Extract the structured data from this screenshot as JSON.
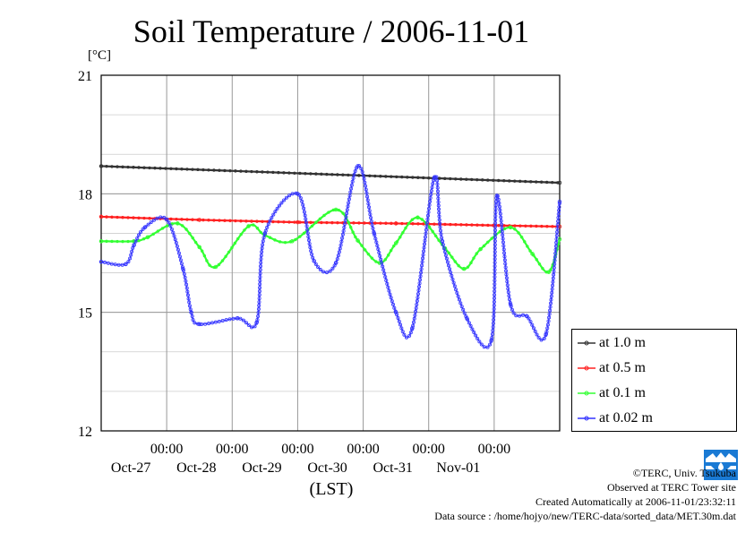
{
  "chart_data": {
    "type": "line",
    "title": "Soil Temperature / 2006-11-01",
    "ylabel": "[°C]",
    "xlabel": "(LST)",
    "ylim": [
      12,
      21
    ],
    "yticks": [
      12,
      15,
      18,
      21
    ],
    "xlim": [
      "2006-10-26 00:00",
      "2006-11-01 24:00"
    ],
    "xticks": [
      {
        "time": "00:00",
        "date": "Oct-27"
      },
      {
        "time": "00:00",
        "date": "Oct-28"
      },
      {
        "time": "00:00",
        "date": "Oct-29"
      },
      {
        "time": "00:00",
        "date": "Oct-30"
      },
      {
        "time": "00:00",
        "date": "Oct-31"
      },
      {
        "time": "00:00",
        "date": "Nov-01"
      }
    ],
    "grid": true,
    "legend_position": "right-bottom",
    "series": [
      {
        "name": "at 1.0 m",
        "color": "#333333",
        "x": [
          "2006-10-26 00:00",
          "2006-11-01 24:00"
        ],
        "y": [
          18.7,
          18.28
        ]
      },
      {
        "name": "at 0.5 m",
        "color": "#ff2020",
        "x": [
          "2006-10-26 00:00",
          "2006-10-27 12:00",
          "2006-10-29 00:00",
          "2006-10-30 12:00",
          "2006-11-01 00:00",
          "2006-11-01 24:00"
        ],
        "y": [
          17.42,
          17.34,
          17.28,
          17.25,
          17.2,
          17.17
        ]
      },
      {
        "name": "at 0.1 m",
        "color": "#33ff33",
        "x": [
          "2006-10-26 00:00",
          "2006-10-26 12:00",
          "2006-10-26 17:00",
          "2006-10-27 04:00",
          "2006-10-27 12:00",
          "2006-10-27 18:00",
          "2006-10-28 06:00",
          "2006-10-28 12:00",
          "2006-10-28 22:00",
          "2006-10-29 14:00",
          "2006-10-29 22:00",
          "2006-10-30 06:00",
          "2006-10-30 12:00",
          "2006-10-30 20:00",
          "2006-10-31 06:00",
          "2006-10-31 13:00",
          "2006-10-31 19:00",
          "2006-11-01 06:00",
          "2006-11-01 14:00",
          "2006-11-01 20:00",
          "2006-11-01 24:00"
        ],
        "y": [
          16.8,
          16.8,
          16.9,
          17.25,
          16.65,
          16.15,
          17.18,
          16.95,
          16.8,
          17.6,
          16.82,
          16.25,
          16.75,
          17.4,
          16.62,
          16.1,
          16.6,
          17.15,
          16.48,
          16.02,
          16.85
        ]
      },
      {
        "name": "at 0.02 m",
        "color": "#3333ff",
        "x": [
          "2006-10-26 00:00",
          "2006-10-26 09:00",
          "2006-10-26 12:00",
          "2006-10-26 16:00",
          "2006-10-27 00:00",
          "2006-10-27 06:00",
          "2006-10-27 09:00",
          "2006-10-27 12:00",
          "2006-10-28 02:00",
          "2006-10-28 09:00",
          "2006-10-28 12:00",
          "2006-10-29 00:00",
          "2006-10-29 06:00",
          "2006-10-29 14:00",
          "2006-10-29 22:00",
          "2006-10-30 04:00",
          "2006-10-30 12:00",
          "2006-10-30 18:00",
          "2006-10-31 02:00",
          "2006-10-31 05:00",
          "2006-10-31 14:00",
          "2006-10-31 23:00",
          "2006-11-01 01:00",
          "2006-11-01 06:00",
          "2006-11-01 12:00",
          "2006-11-01 19:00",
          "2006-11-01 24:00"
        ],
        "y": [
          16.28,
          16.22,
          16.7,
          17.15,
          17.35,
          16.1,
          15.0,
          14.7,
          14.85,
          14.75,
          17.0,
          18.0,
          16.3,
          16.25,
          18.7,
          17.0,
          15.0,
          14.6,
          18.4,
          16.8,
          14.85,
          14.3,
          17.95,
          15.2,
          14.9,
          14.45,
          17.8
        ]
      }
    ]
  },
  "legend": {
    "items": [
      {
        "label": "at 1.0 m",
        "color": "#333333"
      },
      {
        "label": "at 0.5 m",
        "color": "#ff2020"
      },
      {
        "label": "at 0.1 m",
        "color": "#33ff33"
      },
      {
        "label": "at 0.02 m",
        "color": "#3333ff"
      }
    ]
  },
  "credits": {
    "copyright": "©TERC, Univ. Tsukuba",
    "observed": "Observed at TERC Tower site",
    "created": "Created Automatically at 2006-11-01/23:32:11",
    "source": "Data source : /home/hojyo/new/TERC-data/sorted_data/MET.30m.dat"
  },
  "logo": {
    "text": "TERC",
    "color": "#1a7ad4"
  }
}
